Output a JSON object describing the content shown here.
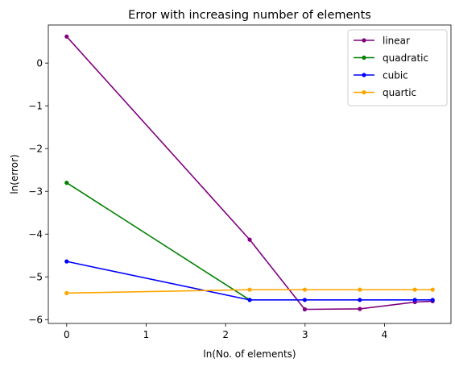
{
  "chart_data": {
    "type": "line",
    "title": "Error with increasing number of elements",
    "xlabel": "ln(No. of elements)",
    "ylabel": "ln(error)",
    "xlim": [
      -0.231,
      4.836
    ],
    "ylim": [
      -6.09,
      0.89
    ],
    "xticks": [
      0,
      1,
      2,
      3,
      4
    ],
    "yticks": [
      0,
      -1,
      -2,
      -3,
      -4,
      -5,
      -6
    ],
    "xtick_labels": [
      "0",
      "1",
      "2",
      "3",
      "4"
    ],
    "ytick_labels": [
      "0",
      "−1",
      "−2",
      "−3",
      "−4",
      "−5",
      "−6"
    ],
    "grid": false,
    "legend_position": "top-right",
    "series": [
      {
        "name": "linear",
        "color": "#800080",
        "x": [
          0,
          2.303,
          2.996,
          3.689,
          4.382,
          4.605
        ],
        "y": [
          0.62,
          -4.13,
          -5.76,
          -5.75,
          -5.59,
          -5.57
        ]
      },
      {
        "name": "quadratic",
        "color": "#008000",
        "x": [
          0,
          2.303
        ],
        "y": [
          -2.8,
          -5.54
        ]
      },
      {
        "name": "cubic",
        "color": "#0000ff",
        "x": [
          0,
          2.303,
          2.996,
          3.689,
          4.382,
          4.605
        ],
        "y": [
          -4.64,
          -5.54,
          -5.54,
          -5.54,
          -5.54,
          -5.54
        ]
      },
      {
        "name": "quartic",
        "color": "#ffa500",
        "x": [
          0,
          2.303,
          2.996,
          3.689,
          4.382,
          4.605
        ],
        "y": [
          -5.38,
          -5.3,
          -5.3,
          -5.3,
          -5.3,
          -5.3
        ]
      }
    ]
  }
}
